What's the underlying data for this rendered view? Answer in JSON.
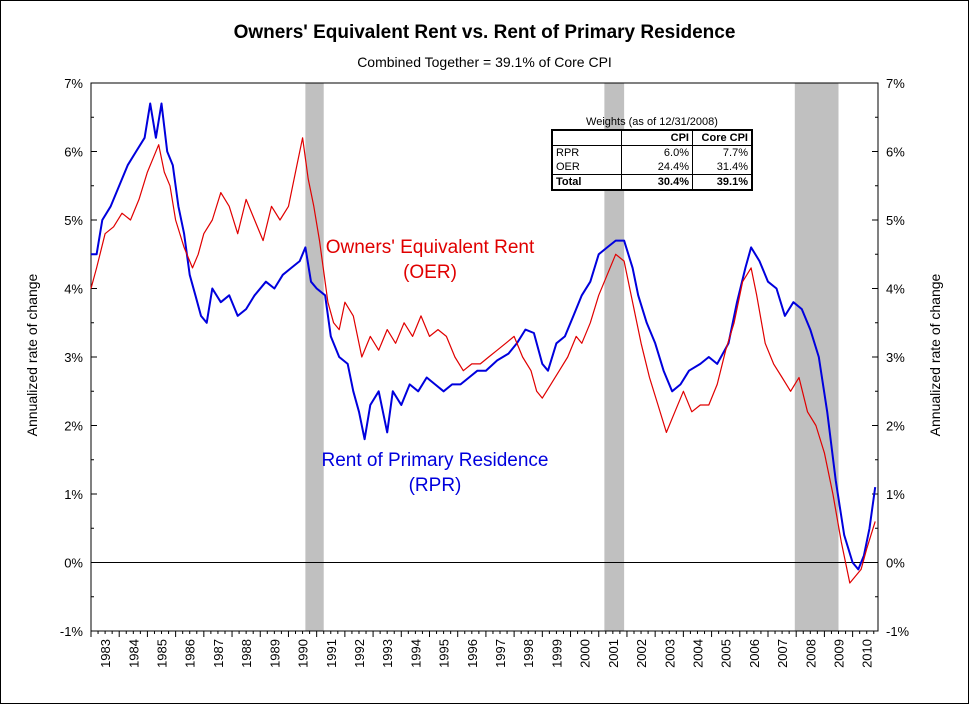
{
  "title": "Owners' Equivalent Rent vs. Rent of Primary Residence",
  "subtitle": "Combined Together = 39.1% of Core CPI",
  "labels": {
    "oer_line1": "Owners' Equivalent Rent",
    "oer_line2": "(OER)",
    "rpr_line1": "Rent of Primary Residence",
    "rpr_line2": "(RPR)"
  },
  "weights_table": {
    "title": "Weights (as of 12/31/2008)",
    "headers": [
      "",
      "CPI",
      "Core CPI"
    ],
    "rows": [
      [
        "RPR",
        "6.0%",
        "7.7%"
      ],
      [
        "OER",
        "24.4%",
        "31.4%"
      ],
      [
        "Total",
        "30.4%",
        "39.1%"
      ]
    ]
  },
  "chart_data": {
    "type": "line",
    "title": "Owners' Equivalent Rent vs. Rent of Primary Residence",
    "subtitle": "Combined Together = 39.1% of Core CPI",
    "xlabel": "",
    "ylabel": "Annualized rate of change",
    "ylabel_right": "Annualized rate of change",
    "xlim": [
      1983,
      2010.9
    ],
    "ylim": [
      -1,
      7
    ],
    "x_ticks": [
      "1983",
      "1984",
      "1985",
      "1986",
      "1987",
      "1988",
      "1989",
      "1990",
      "1991",
      "1992",
      "1993",
      "1994",
      "1995",
      "1996",
      "1997",
      "1998",
      "1999",
      "2000",
      "2001",
      "2002",
      "2003",
      "2004",
      "2005",
      "2006",
      "2007",
      "2008",
      "2009",
      "2010"
    ],
    "y_ticks": [
      "-1%",
      "0%",
      "1%",
      "2%",
      "3%",
      "4%",
      "5%",
      "6%",
      "7%"
    ],
    "grid": false,
    "recessions": [
      [
        1990.6,
        1991.25
      ],
      [
        2001.2,
        2001.9
      ],
      [
        2007.95,
        2009.5
      ]
    ],
    "series": [
      {
        "name": "Rent of Primary Residence",
        "color": "#0000dd",
        "points": [
          [
            1983.0,
            4.5
          ],
          [
            1983.2,
            4.5
          ],
          [
            1983.4,
            5.0
          ],
          [
            1983.7,
            5.2
          ],
          [
            1984.0,
            5.5
          ],
          [
            1984.3,
            5.8
          ],
          [
            1984.6,
            6.0
          ],
          [
            1984.9,
            6.2
          ],
          [
            1985.1,
            6.7
          ],
          [
            1985.3,
            6.2
          ],
          [
            1985.5,
            6.7
          ],
          [
            1985.7,
            6.0
          ],
          [
            1985.9,
            5.8
          ],
          [
            1986.1,
            5.2
          ],
          [
            1986.3,
            4.8
          ],
          [
            1986.5,
            4.2
          ],
          [
            1986.7,
            3.9
          ],
          [
            1986.9,
            3.6
          ],
          [
            1987.1,
            3.5
          ],
          [
            1987.3,
            4.0
          ],
          [
            1987.6,
            3.8
          ],
          [
            1987.9,
            3.9
          ],
          [
            1988.2,
            3.6
          ],
          [
            1988.5,
            3.7
          ],
          [
            1988.8,
            3.9
          ],
          [
            1989.2,
            4.1
          ],
          [
            1989.5,
            4.0
          ],
          [
            1989.8,
            4.2
          ],
          [
            1990.1,
            4.3
          ],
          [
            1990.4,
            4.4
          ],
          [
            1990.6,
            4.6
          ],
          [
            1990.8,
            4.1
          ],
          [
            1991.0,
            4.0
          ],
          [
            1991.3,
            3.9
          ],
          [
            1991.5,
            3.3
          ],
          [
            1991.8,
            3.0
          ],
          [
            1992.1,
            2.9
          ],
          [
            1992.3,
            2.5
          ],
          [
            1992.5,
            2.2
          ],
          [
            1992.7,
            1.8
          ],
          [
            1992.9,
            2.3
          ],
          [
            1993.2,
            2.5
          ],
          [
            1993.5,
            1.9
          ],
          [
            1993.7,
            2.5
          ],
          [
            1994.0,
            2.3
          ],
          [
            1994.3,
            2.6
          ],
          [
            1994.6,
            2.5
          ],
          [
            1994.9,
            2.7
          ],
          [
            1995.2,
            2.6
          ],
          [
            1995.5,
            2.5
          ],
          [
            1995.8,
            2.6
          ],
          [
            1996.1,
            2.6
          ],
          [
            1996.4,
            2.7
          ],
          [
            1996.7,
            2.8
          ],
          [
            1997.0,
            2.8
          ],
          [
            1997.4,
            2.95
          ],
          [
            1997.8,
            3.05
          ],
          [
            1998.1,
            3.2
          ],
          [
            1998.4,
            3.4
          ],
          [
            1998.7,
            3.35
          ],
          [
            1999.0,
            2.9
          ],
          [
            1999.2,
            2.8
          ],
          [
            1999.5,
            3.2
          ],
          [
            1999.8,
            3.3
          ],
          [
            2000.1,
            3.6
          ],
          [
            2000.4,
            3.9
          ],
          [
            2000.7,
            4.1
          ],
          [
            2001.0,
            4.5
          ],
          [
            2001.3,
            4.6
          ],
          [
            2001.6,
            4.7
          ],
          [
            2001.9,
            4.7
          ],
          [
            2002.2,
            4.3
          ],
          [
            2002.4,
            3.9
          ],
          [
            2002.7,
            3.5
          ],
          [
            2003.0,
            3.2
          ],
          [
            2003.3,
            2.8
          ],
          [
            2003.6,
            2.5
          ],
          [
            2003.9,
            2.6
          ],
          [
            2004.2,
            2.8
          ],
          [
            2004.6,
            2.9
          ],
          [
            2004.9,
            3.0
          ],
          [
            2005.2,
            2.9
          ],
          [
            2005.6,
            3.2
          ],
          [
            2005.9,
            3.8
          ],
          [
            2006.2,
            4.3
          ],
          [
            2006.4,
            4.6
          ],
          [
            2006.7,
            4.4
          ],
          [
            2007.0,
            4.1
          ],
          [
            2007.3,
            4.0
          ],
          [
            2007.6,
            3.6
          ],
          [
            2007.9,
            3.8
          ],
          [
            2008.2,
            3.7
          ],
          [
            2008.5,
            3.4
          ],
          [
            2008.8,
            3.0
          ],
          [
            2009.1,
            2.2
          ],
          [
            2009.4,
            1.2
          ],
          [
            2009.7,
            0.4
          ],
          [
            2010.0,
            0.0
          ],
          [
            2010.2,
            -0.1
          ],
          [
            2010.4,
            0.1
          ],
          [
            2010.6,
            0.5
          ],
          [
            2010.8,
            1.1
          ]
        ]
      },
      {
        "name": "Owners' Equivalent Rent",
        "color": "#e00000",
        "points": [
          [
            1983.0,
            4.0
          ],
          [
            1983.2,
            4.3
          ],
          [
            1983.5,
            4.8
          ],
          [
            1983.8,
            4.9
          ],
          [
            1984.1,
            5.1
          ],
          [
            1984.4,
            5.0
          ],
          [
            1984.7,
            5.3
          ],
          [
            1985.0,
            5.7
          ],
          [
            1985.2,
            5.9
          ],
          [
            1985.4,
            6.1
          ],
          [
            1985.6,
            5.7
          ],
          [
            1985.8,
            5.5
          ],
          [
            1986.0,
            5.0
          ],
          [
            1986.3,
            4.6
          ],
          [
            1986.6,
            4.3
          ],
          [
            1986.8,
            4.5
          ],
          [
            1987.0,
            4.8
          ],
          [
            1987.3,
            5.0
          ],
          [
            1987.6,
            5.4
          ],
          [
            1987.9,
            5.2
          ],
          [
            1988.2,
            4.8
          ],
          [
            1988.5,
            5.3
          ],
          [
            1988.8,
            5.0
          ],
          [
            1989.1,
            4.7
          ],
          [
            1989.4,
            5.2
          ],
          [
            1989.7,
            5.0
          ],
          [
            1990.0,
            5.2
          ],
          [
            1990.3,
            5.8
          ],
          [
            1990.5,
            6.2
          ],
          [
            1990.7,
            5.6
          ],
          [
            1990.9,
            5.2
          ],
          [
            1991.1,
            4.7
          ],
          [
            1991.4,
            3.8
          ],
          [
            1991.6,
            3.5
          ],
          [
            1991.8,
            3.4
          ],
          [
            1992.0,
            3.8
          ],
          [
            1992.3,
            3.6
          ],
          [
            1992.6,
            3.0
          ],
          [
            1992.9,
            3.3
          ],
          [
            1993.2,
            3.1
          ],
          [
            1993.5,
            3.4
          ],
          [
            1993.8,
            3.2
          ],
          [
            1994.1,
            3.5
          ],
          [
            1994.4,
            3.3
          ],
          [
            1994.7,
            3.6
          ],
          [
            1995.0,
            3.3
          ],
          [
            1995.3,
            3.4
          ],
          [
            1995.6,
            3.3
          ],
          [
            1995.9,
            3.0
          ],
          [
            1996.2,
            2.8
          ],
          [
            1996.5,
            2.9
          ],
          [
            1996.8,
            2.9
          ],
          [
            1997.1,
            3.0
          ],
          [
            1997.4,
            3.1
          ],
          [
            1997.7,
            3.2
          ],
          [
            1998.0,
            3.3
          ],
          [
            1998.3,
            3.0
          ],
          [
            1998.6,
            2.8
          ],
          [
            1998.8,
            2.5
          ],
          [
            1999.0,
            2.4
          ],
          [
            1999.3,
            2.6
          ],
          [
            1999.6,
            2.8
          ],
          [
            1999.9,
            3.0
          ],
          [
            2000.2,
            3.3
          ],
          [
            2000.4,
            3.2
          ],
          [
            2000.7,
            3.5
          ],
          [
            2001.0,
            3.9
          ],
          [
            2001.3,
            4.2
          ],
          [
            2001.6,
            4.5
          ],
          [
            2001.9,
            4.4
          ],
          [
            2002.2,
            3.8
          ],
          [
            2002.5,
            3.2
          ],
          [
            2002.8,
            2.7
          ],
          [
            2003.1,
            2.3
          ],
          [
            2003.4,
            1.9
          ],
          [
            2003.7,
            2.2
          ],
          [
            2004.0,
            2.5
          ],
          [
            2004.3,
            2.2
          ],
          [
            2004.6,
            2.3
          ],
          [
            2004.9,
            2.3
          ],
          [
            2005.2,
            2.6
          ],
          [
            2005.5,
            3.1
          ],
          [
            2005.8,
            3.5
          ],
          [
            2006.1,
            4.1
          ],
          [
            2006.4,
            4.3
          ],
          [
            2006.6,
            3.9
          ],
          [
            2006.9,
            3.2
          ],
          [
            2007.2,
            2.9
          ],
          [
            2007.5,
            2.7
          ],
          [
            2007.8,
            2.5
          ],
          [
            2008.1,
            2.7
          ],
          [
            2008.4,
            2.2
          ],
          [
            2008.7,
            2.0
          ],
          [
            2009.0,
            1.6
          ],
          [
            2009.3,
            1.0
          ],
          [
            2009.6,
            0.3
          ],
          [
            2009.9,
            -0.3
          ],
          [
            2010.1,
            -0.2
          ],
          [
            2010.3,
            -0.1
          ],
          [
            2010.5,
            0.2
          ],
          [
            2010.8,
            0.6
          ]
        ]
      }
    ]
  }
}
